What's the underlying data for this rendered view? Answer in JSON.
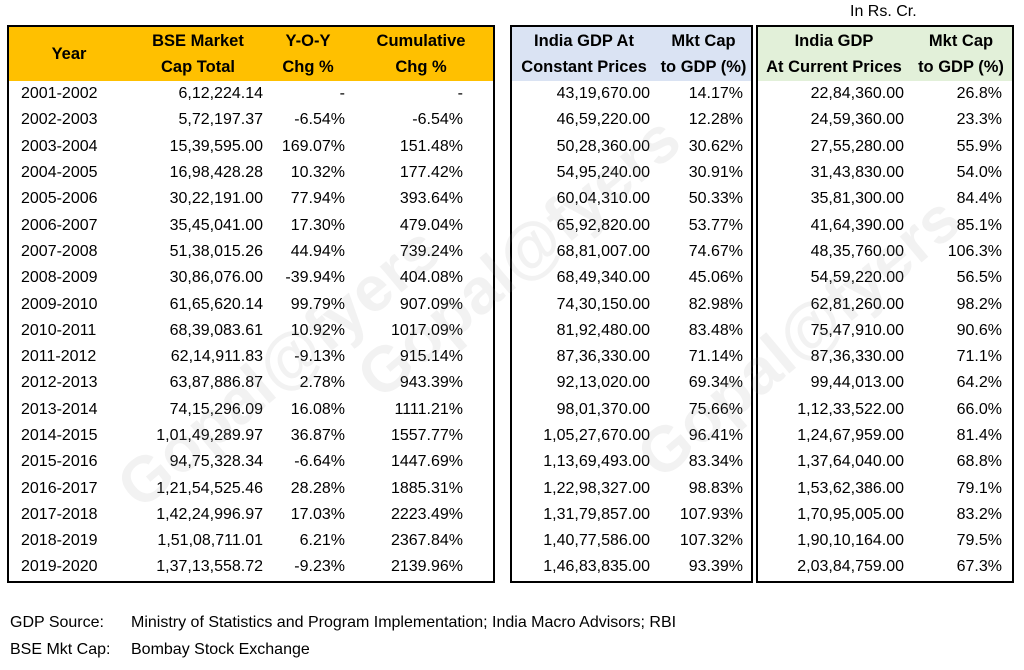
{
  "unit_note": "In Rs. Cr.",
  "watermark": "Gopal@fyers",
  "headers": {
    "year": "Year",
    "bse_market_cap": "BSE Market\nCap Total",
    "yoy": "Y-O-Y\nChg %",
    "cumulative": "Cumulative\nChg %",
    "gdp_constant": "India GDP At\nConstant Prices",
    "mcap_gdp_constant": "Mkt Cap\nto GDP (%)",
    "gdp_current": "India GDP\nAt Current Prices",
    "mcap_gdp_current": "Mkt Cap\nto GDP (%)"
  },
  "rows": [
    {
      "year": "2001-2002",
      "bse": "6,12,224.14",
      "yoy": "-",
      "cum": "-",
      "gdp_const": "43,19,670.00",
      "ratio_const": "14.17%",
      "gdp_curr": "22,84,360.00",
      "ratio_curr": "26.8%"
    },
    {
      "year": "2002-2003",
      "bse": "5,72,197.37",
      "yoy": "-6.54%",
      "cum": "-6.54%",
      "gdp_const": "46,59,220.00",
      "ratio_const": "12.28%",
      "gdp_curr": "24,59,360.00",
      "ratio_curr": "23.3%"
    },
    {
      "year": "2003-2004",
      "bse": "15,39,595.00",
      "yoy": "169.07%",
      "cum": "151.48%",
      "gdp_const": "50,28,360.00",
      "ratio_const": "30.62%",
      "gdp_curr": "27,55,280.00",
      "ratio_curr": "55.9%"
    },
    {
      "year": "2004-2005",
      "bse": "16,98,428.28",
      "yoy": "10.32%",
      "cum": "177.42%",
      "gdp_const": "54,95,240.00",
      "ratio_const": "30.91%",
      "gdp_curr": "31,43,830.00",
      "ratio_curr": "54.0%"
    },
    {
      "year": "2005-2006",
      "bse": "30,22,191.00",
      "yoy": "77.94%",
      "cum": "393.64%",
      "gdp_const": "60,04,310.00",
      "ratio_const": "50.33%",
      "gdp_curr": "35,81,300.00",
      "ratio_curr": "84.4%"
    },
    {
      "year": "2006-2007",
      "bse": "35,45,041.00",
      "yoy": "17.30%",
      "cum": "479.04%",
      "gdp_const": "65,92,820.00",
      "ratio_const": "53.77%",
      "gdp_curr": "41,64,390.00",
      "ratio_curr": "85.1%"
    },
    {
      "year": "2007-2008",
      "bse": "51,38,015.26",
      "yoy": "44.94%",
      "cum": "739.24%",
      "gdp_const": "68,81,007.00",
      "ratio_const": "74.67%",
      "gdp_curr": "48,35,760.00",
      "ratio_curr": "106.3%"
    },
    {
      "year": "2008-2009",
      "bse": "30,86,076.00",
      "yoy": "-39.94%",
      "cum": "404.08%",
      "gdp_const": "68,49,340.00",
      "ratio_const": "45.06%",
      "gdp_curr": "54,59,220.00",
      "ratio_curr": "56.5%"
    },
    {
      "year": "2009-2010",
      "bse": "61,65,620.14",
      "yoy": "99.79%",
      "cum": "907.09%",
      "gdp_const": "74,30,150.00",
      "ratio_const": "82.98%",
      "gdp_curr": "62,81,260.00",
      "ratio_curr": "98.2%"
    },
    {
      "year": "2010-2011",
      "bse": "68,39,083.61",
      "yoy": "10.92%",
      "cum": "1017.09%",
      "gdp_const": "81,92,480.00",
      "ratio_const": "83.48%",
      "gdp_curr": "75,47,910.00",
      "ratio_curr": "90.6%"
    },
    {
      "year": "2011-2012",
      "bse": "62,14,911.83",
      "yoy": "-9.13%",
      "cum": "915.14%",
      "gdp_const": "87,36,330.00",
      "ratio_const": "71.14%",
      "gdp_curr": "87,36,330.00",
      "ratio_curr": "71.1%"
    },
    {
      "year": "2012-2013",
      "bse": "63,87,886.87",
      "yoy": "2.78%",
      "cum": "943.39%",
      "gdp_const": "92,13,020.00",
      "ratio_const": "69.34%",
      "gdp_curr": "99,44,013.00",
      "ratio_curr": "64.2%"
    },
    {
      "year": "2013-2014",
      "bse": "74,15,296.09",
      "yoy": "16.08%",
      "cum": "1111.21%",
      "gdp_const": "98,01,370.00",
      "ratio_const": "75.66%",
      "gdp_curr": "1,12,33,522.00",
      "ratio_curr": "66.0%"
    },
    {
      "year": "2014-2015",
      "bse": "1,01,49,289.97",
      "yoy": "36.87%",
      "cum": "1557.77%",
      "gdp_const": "1,05,27,670.00",
      "ratio_const": "96.41%",
      "gdp_curr": "1,24,67,959.00",
      "ratio_curr": "81.4%"
    },
    {
      "year": "2015-2016",
      "bse": "94,75,328.34",
      "yoy": "-6.64%",
      "cum": "1447.69%",
      "gdp_const": "1,13,69,493.00",
      "ratio_const": "83.34%",
      "gdp_curr": "1,37,64,040.00",
      "ratio_curr": "68.8%"
    },
    {
      "year": "2016-2017",
      "bse": "1,21,54,525.46",
      "yoy": "28.28%",
      "cum": "1885.31%",
      "gdp_const": "1,22,98,327.00",
      "ratio_const": "98.83%",
      "gdp_curr": "1,53,62,386.00",
      "ratio_curr": "79.1%"
    },
    {
      "year": "2017-2018",
      "bse": "1,42,24,996.97",
      "yoy": "17.03%",
      "cum": "2223.49%",
      "gdp_const": "1,31,79,857.00",
      "ratio_const": "107.93%",
      "gdp_curr": "1,70,95,005.00",
      "ratio_curr": "83.2%"
    },
    {
      "year": "2018-2019",
      "bse": "1,51,08,711.01",
      "yoy": "6.21%",
      "cum": "2367.84%",
      "gdp_const": "1,40,77,586.00",
      "ratio_const": "107.32%",
      "gdp_curr": "1,90,10,164.00",
      "ratio_curr": "79.5%"
    },
    {
      "year": "2019-2020",
      "bse": "1,37,13,558.72",
      "yoy": "-9.23%",
      "cum": "2139.96%",
      "gdp_const": "1,46,83,835.00",
      "ratio_const": "93.39%",
      "gdp_curr": "2,03,84,759.00",
      "ratio_curr": "67.3%"
    }
  ],
  "sources": [
    {
      "label": "GDP Source:",
      "text": "Ministry of Statistics and Program Implementation; India Macro Advisors; RBI"
    },
    {
      "label": "BSE Mkt Cap:",
      "text": "Bombay Stock Exchange"
    }
  ]
}
